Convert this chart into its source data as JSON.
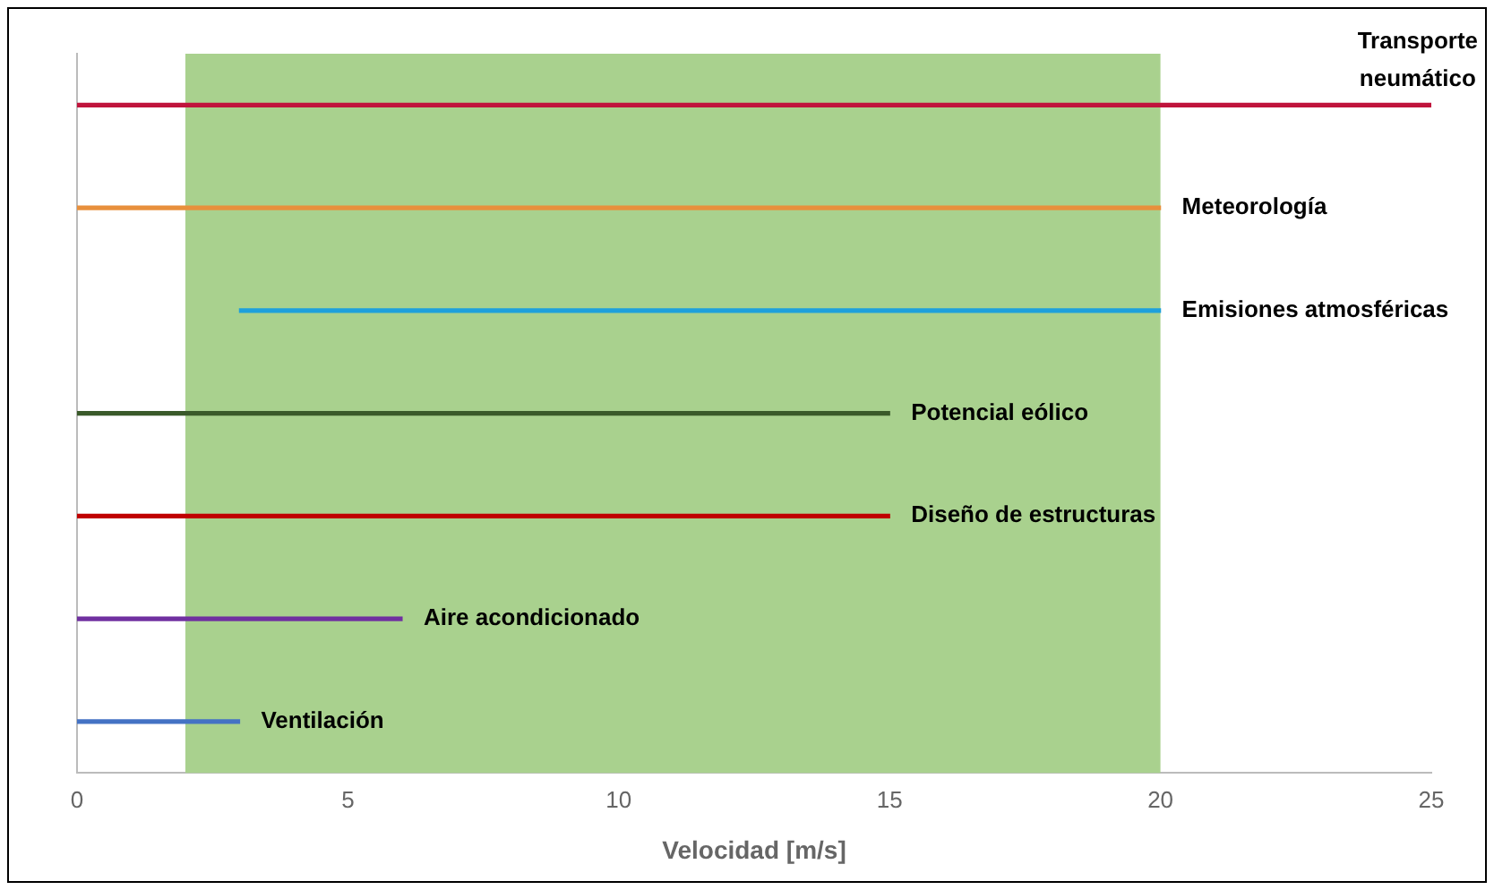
{
  "chart_data": {
    "type": "bar",
    "orientation": "horizontal",
    "xlabel": "Velocidad [m/s]",
    "categories": [
      "Transporte neumático",
      "Meteorología",
      "Emisiones atmosféricas",
      "Potencial eólico",
      "Diseño de estructuras",
      "Aire acondicionado",
      "Ventilación"
    ],
    "base": [
      0,
      0,
      3,
      0,
      0,
      0,
      0
    ],
    "values": [
      25,
      20,
      17,
      15,
      15,
      6,
      3
    ],
    "colors": [
      "#c0143c",
      "#e8903c",
      "#1ea0dc",
      "#3a5a2a",
      "#c00000",
      "#7030a0",
      "#4472c4"
    ],
    "xlim": [
      0,
      25
    ],
    "xticks": [
      0,
      5,
      10,
      15,
      20,
      25
    ],
    "bands": [
      {
        "axis": "x",
        "from": 2,
        "to": 20,
        "color": "#a9d18e"
      }
    ],
    "tick_labels": "x",
    "grid": false,
    "legend": false
  }
}
